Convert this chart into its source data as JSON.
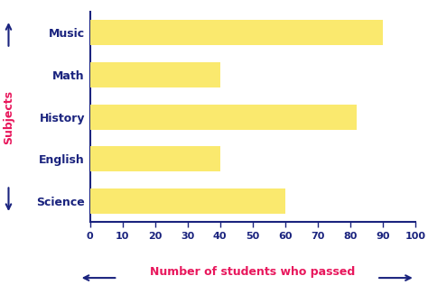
{
  "categories": [
    "Music",
    "Math",
    "History",
    "English",
    "Science"
  ],
  "values": [
    90,
    40,
    82,
    40,
    60
  ],
  "bar_color": "#FAE96E",
  "background_color": "#FFFFFF",
  "xlabel": "Number of students who passed",
  "ylabel": "Subjects",
  "xlabel_color": "#E8175C",
  "ylabel_color": "#E8175C",
  "axis_color": "#1A237E",
  "tick_label_color": "#1A237E",
  "category_label_color": "#1A237E",
  "xlim": [
    0,
    100
  ],
  "xticks": [
    0,
    10,
    20,
    30,
    40,
    50,
    60,
    70,
    80,
    90,
    100
  ],
  "label_fontsize": 9,
  "tick_fontsize": 8,
  "cat_fontsize": 9,
  "bar_height": 0.6
}
